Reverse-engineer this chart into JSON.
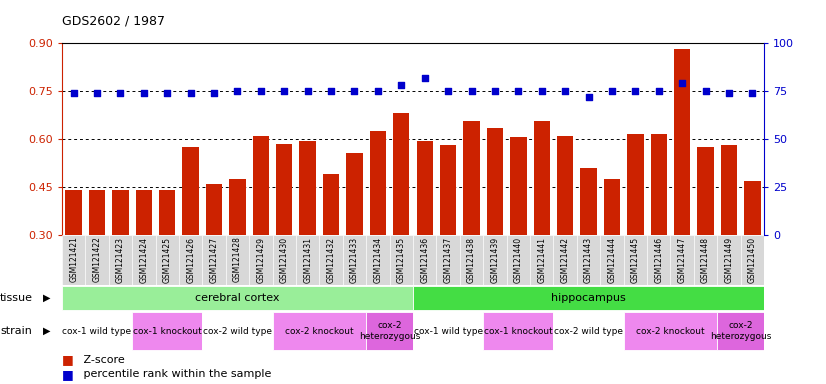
{
  "title": "GDS2602 / 1987",
  "samples": [
    "GSM121421",
    "GSM121422",
    "GSM121423",
    "GSM121424",
    "GSM121425",
    "GSM121426",
    "GSM121427",
    "GSM121428",
    "GSM121429",
    "GSM121430",
    "GSM121431",
    "GSM121432",
    "GSM121433",
    "GSM121434",
    "GSM121435",
    "GSM121436",
    "GSM121437",
    "GSM121438",
    "GSM121439",
    "GSM121440",
    "GSM121441",
    "GSM121442",
    "GSM121443",
    "GSM121444",
    "GSM121445",
    "GSM121446",
    "GSM121447",
    "GSM121448",
    "GSM121449",
    "GSM121450"
  ],
  "z_scores": [
    0.44,
    0.44,
    0.44,
    0.44,
    0.44,
    0.575,
    0.46,
    0.475,
    0.61,
    0.585,
    0.595,
    0.49,
    0.555,
    0.625,
    0.68,
    0.595,
    0.58,
    0.655,
    0.635,
    0.605,
    0.655,
    0.61,
    0.51,
    0.475,
    0.615,
    0.615,
    0.88,
    0.575,
    0.58,
    0.47
  ],
  "percentiles": [
    74,
    74,
    74,
    74,
    74,
    74,
    74,
    75,
    75,
    75,
    75,
    75,
    75,
    75,
    78,
    82,
    75,
    75,
    75,
    75,
    75,
    75,
    72,
    75,
    75,
    75,
    79,
    75,
    74,
    74
  ],
  "bar_color": "#cc2200",
  "dot_color": "#0000cc",
  "ylim_left": [
    0.3,
    0.9
  ],
  "ylim_right": [
    0,
    100
  ],
  "yticks_left": [
    0.3,
    0.45,
    0.6,
    0.75,
    0.9
  ],
  "yticks_right": [
    0,
    25,
    50,
    75,
    100
  ],
  "grid_values": [
    0.45,
    0.6,
    0.75
  ],
  "tissue_groups": [
    {
      "label": "cerebral cortex",
      "start": 0,
      "end": 14,
      "color": "#99ee99"
    },
    {
      "label": "hippocampus",
      "start": 15,
      "end": 29,
      "color": "#44dd44"
    }
  ],
  "strain_groups": [
    {
      "label": "cox-1 wild type",
      "start": 0,
      "end": 2,
      "color": "#ffffff"
    },
    {
      "label": "cox-1 knockout",
      "start": 3,
      "end": 5,
      "color": "#ee88ee"
    },
    {
      "label": "cox-2 wild type",
      "start": 6,
      "end": 8,
      "color": "#ffffff"
    },
    {
      "label": "cox-2 knockout",
      "start": 9,
      "end": 12,
      "color": "#ee88ee"
    },
    {
      "label": "cox-2\nheterozygous",
      "start": 13,
      "end": 14,
      "color": "#dd66dd"
    },
    {
      "label": "cox-1 wild type",
      "start": 15,
      "end": 17,
      "color": "#ffffff"
    },
    {
      "label": "cox-1 knockout",
      "start": 18,
      "end": 20,
      "color": "#ee88ee"
    },
    {
      "label": "cox-2 wild type",
      "start": 21,
      "end": 23,
      "color": "#ffffff"
    },
    {
      "label": "cox-2 knockout",
      "start": 24,
      "end": 27,
      "color": "#ee88ee"
    },
    {
      "label": "cox-2\nheterozygous",
      "start": 28,
      "end": 29,
      "color": "#dd66dd"
    }
  ],
  "bar_color_z_legend": "#cc2200",
  "dot_color_legend": "#0000cc",
  "left_axis_color": "#cc2200",
  "right_axis_color": "#0000cc",
  "tick_bg_color": "#d8d8d8",
  "fig_width": 8.26,
  "fig_height": 3.84,
  "dpi": 100
}
